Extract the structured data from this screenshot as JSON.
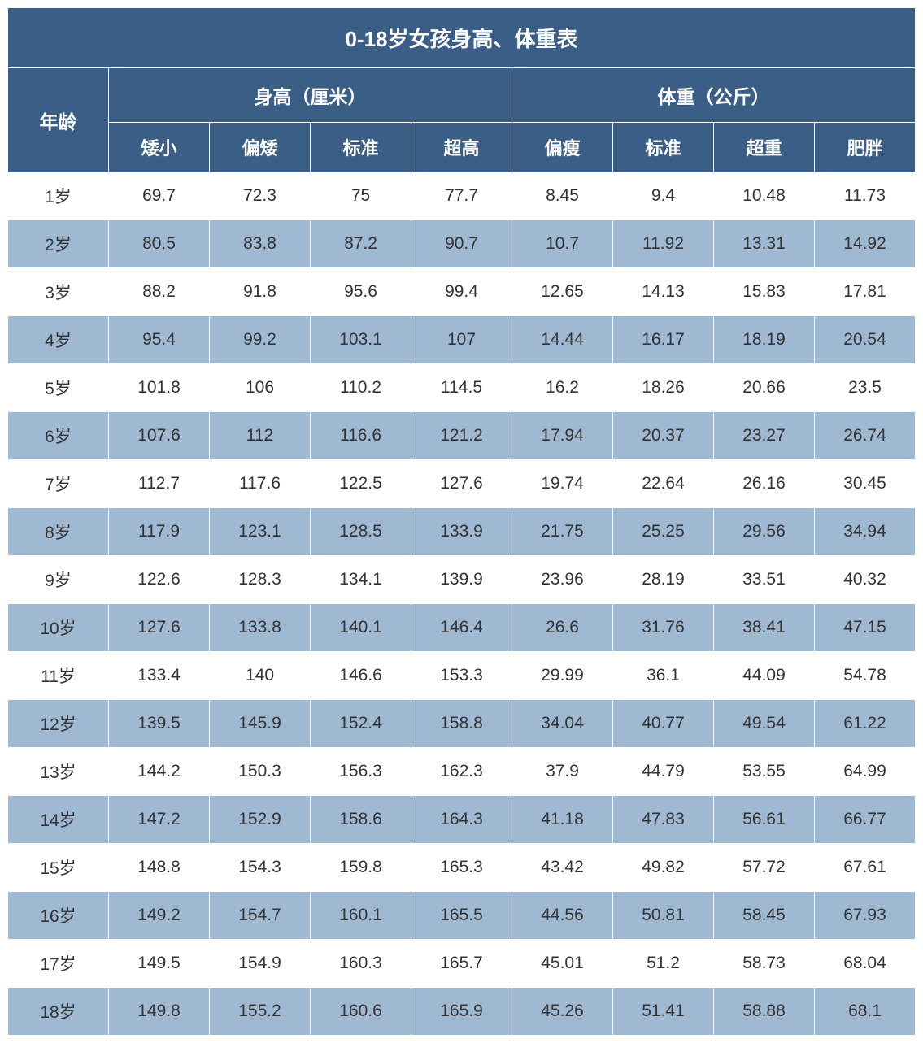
{
  "table": {
    "type": "table",
    "title": "0-18岁女孩身高、体重表",
    "colors": {
      "header_bg": "#3b5e87",
      "header_text": "#ffffff",
      "row_odd_bg": "#ffffff",
      "row_even_bg": "#9fb9d3",
      "cell_text": "#333333",
      "border": "#ffffff"
    },
    "typography": {
      "title_fontsize": 26,
      "header_fontsize": 23,
      "subheader_fontsize": 22,
      "cell_fontsize": 21,
      "font_family": "Microsoft YaHei"
    },
    "age_label": "年龄",
    "groups": [
      {
        "label": "身高（厘米）",
        "subcolumns": [
          "矮小",
          "偏矮",
          "标准",
          "超高"
        ]
      },
      {
        "label": "体重（公斤）",
        "subcolumns": [
          "偏瘦",
          "标准",
          "超重",
          "肥胖"
        ]
      }
    ],
    "rows": [
      {
        "age": "1岁",
        "values": [
          "69.7",
          "72.3",
          "75",
          "77.7",
          "8.45",
          "9.4",
          "10.48",
          "11.73"
        ]
      },
      {
        "age": "2岁",
        "values": [
          "80.5",
          "83.8",
          "87.2",
          "90.7",
          "10.7",
          "11.92",
          "13.31",
          "14.92"
        ]
      },
      {
        "age": "3岁",
        "values": [
          "88.2",
          "91.8",
          "95.6",
          "99.4",
          "12.65",
          "14.13",
          "15.83",
          "17.81"
        ]
      },
      {
        "age": "4岁",
        "values": [
          "95.4",
          "99.2",
          "103.1",
          "107",
          "14.44",
          "16.17",
          "18.19",
          "20.54"
        ]
      },
      {
        "age": "5岁",
        "values": [
          "101.8",
          "106",
          "110.2",
          "114.5",
          "16.2",
          "18.26",
          "20.66",
          "23.5"
        ]
      },
      {
        "age": "6岁",
        "values": [
          "107.6",
          "112",
          "116.6",
          "121.2",
          "17.94",
          "20.37",
          "23.27",
          "26.74"
        ]
      },
      {
        "age": "7岁",
        "values": [
          "112.7",
          "117.6",
          "122.5",
          "127.6",
          "19.74",
          "22.64",
          "26.16",
          "30.45"
        ]
      },
      {
        "age": "8岁",
        "values": [
          "117.9",
          "123.1",
          "128.5",
          "133.9",
          "21.75",
          "25.25",
          "29.56",
          "34.94"
        ]
      },
      {
        "age": "9岁",
        "values": [
          "122.6",
          "128.3",
          "134.1",
          "139.9",
          "23.96",
          "28.19",
          "33.51",
          "40.32"
        ]
      },
      {
        "age": "10岁",
        "values": [
          "127.6",
          "133.8",
          "140.1",
          "146.4",
          "26.6",
          "31.76",
          "38.41",
          "47.15"
        ]
      },
      {
        "age": "11岁",
        "values": [
          "133.4",
          "140",
          "146.6",
          "153.3",
          "29.99",
          "36.1",
          "44.09",
          "54.78"
        ]
      },
      {
        "age": "12岁",
        "values": [
          "139.5",
          "145.9",
          "152.4",
          "158.8",
          "34.04",
          "40.77",
          "49.54",
          "61.22"
        ]
      },
      {
        "age": "13岁",
        "values": [
          "144.2",
          "150.3",
          "156.3",
          "162.3",
          "37.9",
          "44.79",
          "53.55",
          "64.99"
        ]
      },
      {
        "age": "14岁",
        "values": [
          "147.2",
          "152.9",
          "158.6",
          "164.3",
          "41.18",
          "47.83",
          "56.61",
          "66.77"
        ]
      },
      {
        "age": "15岁",
        "values": [
          "148.8",
          "154.3",
          "159.8",
          "165.3",
          "43.42",
          "49.82",
          "57.72",
          "67.61"
        ]
      },
      {
        "age": "16岁",
        "values": [
          "149.2",
          "154.7",
          "160.1",
          "165.5",
          "44.56",
          "50.81",
          "58.45",
          "67.93"
        ]
      },
      {
        "age": "17岁",
        "values": [
          "149.5",
          "154.9",
          "160.3",
          "165.7",
          "45.01",
          "51.2",
          "58.73",
          "68.04"
        ]
      },
      {
        "age": "18岁",
        "values": [
          "149.8",
          "155.2",
          "160.6",
          "165.9",
          "45.26",
          "51.41",
          "58.88",
          "68.1"
        ]
      }
    ]
  }
}
